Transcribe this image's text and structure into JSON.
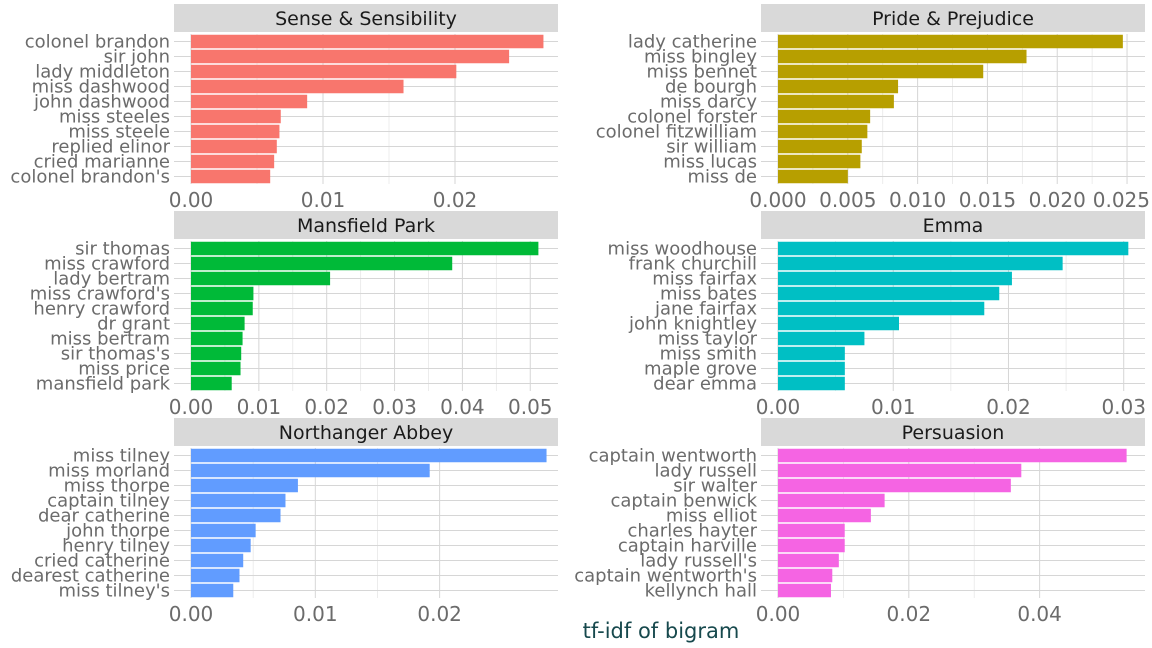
{
  "chart_data": {
    "type": "bar",
    "orientation": "horizontal",
    "xlabel": "tf-idf of bigram",
    "ylabel": "",
    "grid": true,
    "legend": "none",
    "panels": [
      {
        "title": "Sense & Sensibility",
        "color": "#F8766D",
        "xlim": [
          0,
          0.0275
        ],
        "ticks": [
          "0.00",
          "0.01",
          "0.02"
        ],
        "tick_values": [
          0,
          0.01,
          0.02
        ],
        "categories": [
          "colonel brandon",
          "sir john",
          "lady middleton",
          "miss dashwood",
          "john dashwood",
          "miss steeles",
          "miss steele",
          "replied elinor",
          "cried marianne",
          "colonel brandon's"
        ],
        "values": [
          0.0267,
          0.0241,
          0.0201,
          0.0161,
          0.0088,
          0.0068,
          0.0067,
          0.0065,
          0.0063,
          0.006
        ]
      },
      {
        "title": "Pride & Prejudice",
        "color": "#B79F00",
        "xlim": [
          0,
          0.026
        ],
        "ticks": [
          "0.000",
          "0.005",
          "0.010",
          "0.015",
          "0.020",
          "0.025"
        ],
        "tick_values": [
          0,
          0.005,
          0.01,
          0.015,
          0.02,
          0.025
        ],
        "categories": [
          "lady catherine",
          "miss bingley",
          "miss bennet",
          "de bourgh",
          "miss darcy",
          "colonel forster",
          "colonel fitzwilliam",
          "sir william",
          "miss lucas",
          "miss de"
        ],
        "values": [
          0.0247,
          0.0178,
          0.0147,
          0.0086,
          0.0083,
          0.0066,
          0.0064,
          0.006,
          0.0059,
          0.005
        ]
      },
      {
        "title": "Mansfield Park",
        "color": "#00BA38",
        "xlim": [
          0,
          0.0535
        ],
        "ticks": [
          "0.00",
          "0.01",
          "0.02",
          "0.03",
          "0.04",
          "0.05"
        ],
        "tick_values": [
          0,
          0.01,
          0.02,
          0.03,
          0.04,
          0.05
        ],
        "categories": [
          "sir thomas",
          "miss crawford",
          "lady bertram",
          "miss crawford's",
          "henry crawford",
          "dr grant",
          "miss bertram",
          "sir thomas's",
          "miss price",
          "mansfield park"
        ],
        "values": [
          0.0512,
          0.0385,
          0.0205,
          0.0092,
          0.0091,
          0.0079,
          0.0076,
          0.0074,
          0.0073,
          0.006
        ]
      },
      {
        "title": "Emma",
        "color": "#00BFC4",
        "xlim": [
          0,
          0.0315
        ],
        "ticks": [
          "0.00",
          "0.01",
          "0.02",
          "0.03"
        ],
        "tick_values": [
          0,
          0.01,
          0.02,
          0.03
        ],
        "categories": [
          "miss woodhouse",
          "frank churchill",
          "miss fairfax",
          "miss bates",
          "jane fairfax",
          "john knightley",
          "miss taylor",
          "miss smith",
          "maple grove",
          "dear emma"
        ],
        "values": [
          0.0304,
          0.0247,
          0.0203,
          0.0192,
          0.0179,
          0.0105,
          0.0075,
          0.0058,
          0.0058,
          0.0058
        ]
      },
      {
        "title": "Northanger Abbey",
        "color": "#619CFF",
        "xlim": [
          0,
          0.0292
        ],
        "ticks": [
          "0.00",
          "0.01",
          "0.02"
        ],
        "tick_values": [
          0,
          0.01,
          0.02
        ],
        "categories": [
          "miss tilney",
          "miss morland",
          "miss thorpe",
          "captain tilney",
          "dear catherine",
          "john thorpe",
          "henry tilney",
          "cried catherine",
          "dearest catherine",
          "miss tilney's"
        ],
        "values": [
          0.0286,
          0.0192,
          0.0086,
          0.0076,
          0.0072,
          0.0052,
          0.0048,
          0.0042,
          0.0039,
          0.0034
        ]
      },
      {
        "title": "Persuasion",
        "color": "#F564E3",
        "xlim": [
          0,
          0.0555
        ],
        "ticks": [
          "0.00",
          "0.02",
          "0.04"
        ],
        "tick_values": [
          0,
          0.02,
          0.04
        ],
        "categories": [
          "captain wentworth",
          "lady russell",
          "sir walter",
          "captain benwick",
          "miss elliot",
          "charles hayter",
          "captain harville",
          "lady russell's",
          "captain wentworth's",
          "kellynch hall"
        ],
        "values": [
          0.0533,
          0.0372,
          0.0356,
          0.0163,
          0.0142,
          0.0102,
          0.0102,
          0.0093,
          0.0083,
          0.0081
        ]
      }
    ]
  }
}
